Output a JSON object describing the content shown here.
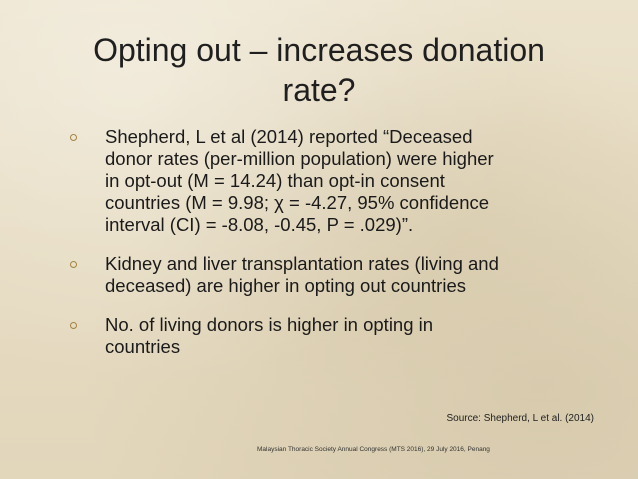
{
  "slide": {
    "title_line1": "Opting out – increases donation",
    "title_line2": "rate?",
    "bullets": [
      {
        "icon": "hollow-circle-bullet",
        "lines": [
          "Shepherd, L et al (2014) reported “Deceased",
          "donor rates (per-million population) were higher",
          "in opt-out (M = 14.24) than opt-in consent",
          "countries (M = 9.98; χ = -4.27, 95% confidence",
          "interval (CI) = -8.08, -0.45, P = .029)”."
        ]
      },
      {
        "icon": "hollow-circle-bullet",
        "lines": [
          "Kidney and liver transplantation rates (living and",
          "deceased) are higher in opting out countries"
        ]
      },
      {
        "icon": "hollow-circle-bullet",
        "lines": [
          "No. of living donors is higher in opting in",
          "countries"
        ]
      }
    ],
    "source": "Source: Shepherd, L et al. (2014)",
    "footer": "Malaysian Thoracic Society Annual Congress (MTS 2016), 29 July 2016, Penang"
  },
  "colors": {
    "background": "#e9dfc8",
    "bullet_accent": "#a4823f",
    "text": "#1a1a1a"
  }
}
